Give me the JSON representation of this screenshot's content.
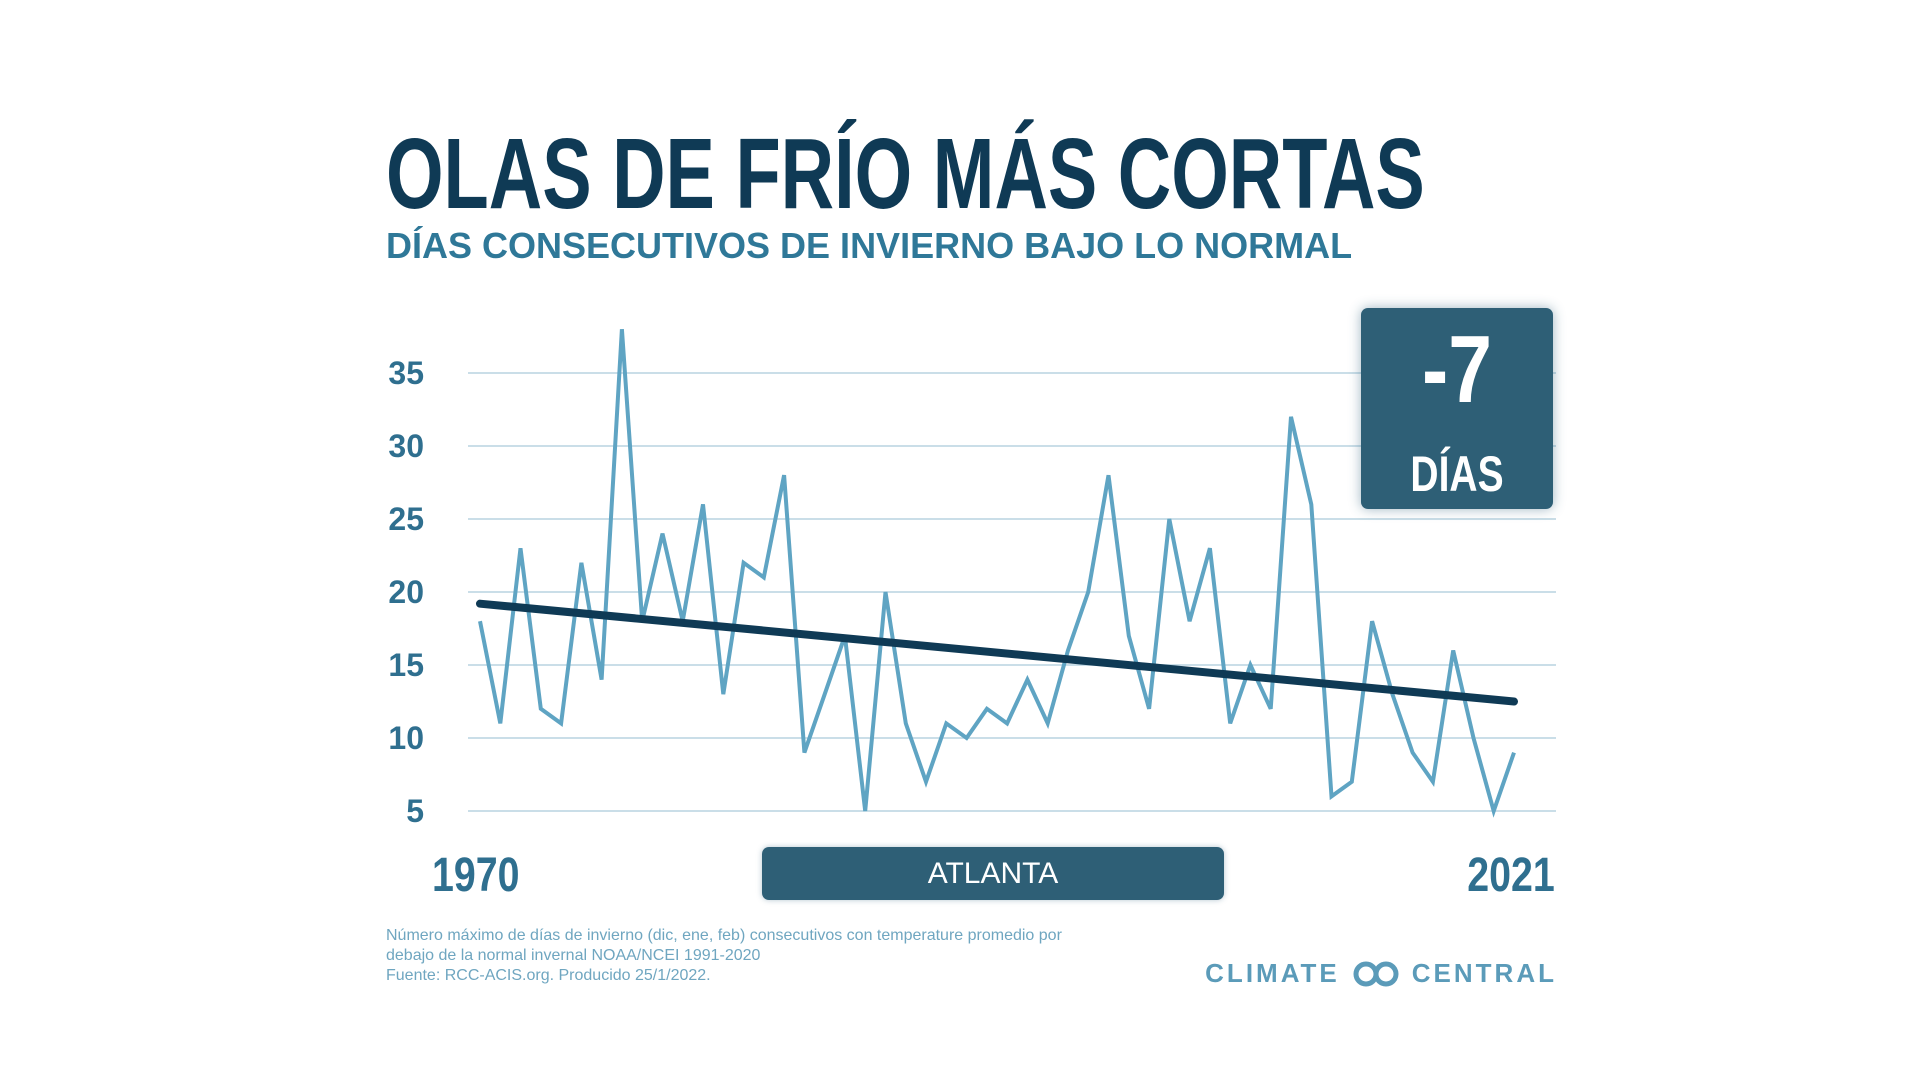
{
  "header": {
    "title": "OLAS DE FRÍO MÁS CORTAS",
    "subtitle": "DÍAS CONSECUTIVOS DE INVIERNO BAJO LO NORMAL"
  },
  "badge": {
    "value": "-7",
    "unit": "DÍAS"
  },
  "location_label": "ATLANTA",
  "footnote": {
    "line1": "Número máximo de días de invierno (dic, ene, feb) consecutivos con temperature promedio por",
    "line2": "debajo de la normal invernal NOAA/NCEI 1991-2020",
    "line3": "Fuente: RCC-ACIS.org. Producido 25/1/2022."
  },
  "brand": {
    "left": "CLIMATE",
    "right": "CENTRAL"
  },
  "colors": {
    "title": "#0f3a55",
    "subtitle": "#2f7898",
    "series_line": "#5fa4c3",
    "trend_line": "#0f3a55",
    "gridline": "#b9d3e0",
    "badge_bg": "#2e5f76"
  },
  "chart_data": {
    "type": "line",
    "x_start_label": "1970",
    "x_end_label": "2021",
    "ylim": [
      5,
      38
    ],
    "yticks": [
      5,
      10,
      15,
      20,
      25,
      30,
      35
    ],
    "grid": true,
    "x": [
      1970,
      1971,
      1972,
      1973,
      1974,
      1975,
      1976,
      1977,
      1978,
      1979,
      1980,
      1981,
      1982,
      1983,
      1984,
      1985,
      1986,
      1987,
      1988,
      1989,
      1990,
      1991,
      1992,
      1993,
      1994,
      1995,
      1996,
      1997,
      1998,
      1999,
      2000,
      2001,
      2002,
      2003,
      2004,
      2005,
      2006,
      2007,
      2008,
      2009,
      2010,
      2011,
      2012,
      2013,
      2014,
      2015,
      2016,
      2017,
      2018,
      2019,
      2020,
      2021
    ],
    "series": [
      {
        "values": [
          18,
          11,
          23,
          12,
          11,
          22,
          14,
          38,
          18,
          24,
          18,
          26,
          13,
          22,
          21,
          28,
          9,
          13,
          17,
          5,
          20,
          11,
          7,
          11,
          10,
          12,
          11,
          14,
          11,
          16,
          20,
          28,
          17,
          12,
          25,
          18,
          23,
          11,
          15,
          12,
          32,
          26,
          6,
          7,
          18,
          13,
          9,
          7,
          16,
          10,
          5,
          9
        ]
      }
    ],
    "trend": {
      "start": [
        1970,
        19.2
      ],
      "end": [
        2021,
        12.5
      ]
    }
  }
}
